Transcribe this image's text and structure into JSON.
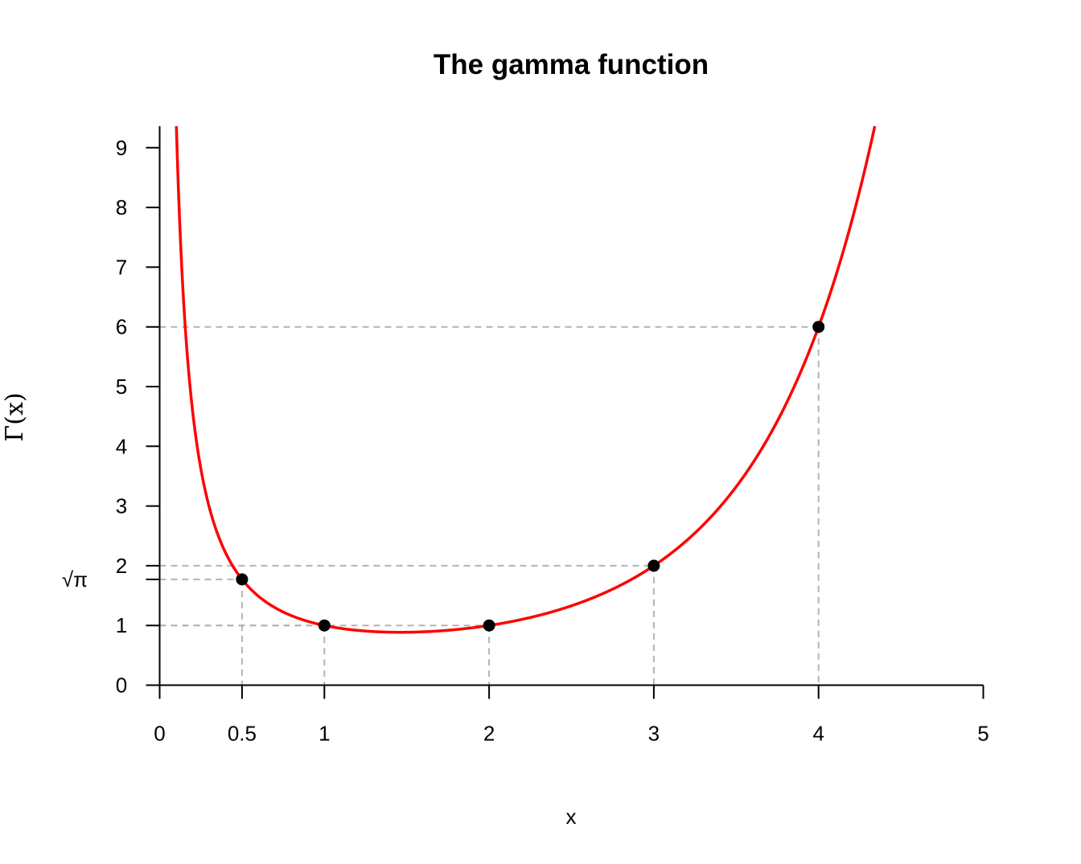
{
  "chart_data": {
    "type": "line",
    "title": "The gamma function",
    "xlabel": "x",
    "ylabel": "Γ(x)",
    "xlim": [
      0,
      5
    ],
    "ylim": [
      0,
      9.4
    ],
    "x_ticks": [
      {
        "value": 0,
        "label": "0"
      },
      {
        "value": 0.5,
        "label": "0.5"
      },
      {
        "value": 1,
        "label": "1"
      },
      {
        "value": 2,
        "label": "2"
      },
      {
        "value": 3,
        "label": "3"
      },
      {
        "value": 4,
        "label": "4"
      },
      {
        "value": 5,
        "label": "5"
      }
    ],
    "y_ticks": [
      {
        "value": 0,
        "label": "0"
      },
      {
        "value": 1,
        "label": "1"
      },
      {
        "value": 1.772,
        "label": "√π"
      },
      {
        "value": 2,
        "label": "2"
      },
      {
        "value": 3,
        "label": "3"
      },
      {
        "value": 4,
        "label": "4"
      },
      {
        "value": 5,
        "label": "5"
      },
      {
        "value": 6,
        "label": "6"
      },
      {
        "value": 7,
        "label": "7"
      },
      {
        "value": 8,
        "label": "8"
      },
      {
        "value": 9,
        "label": "9"
      }
    ],
    "curve": {
      "function": "gamma",
      "color": "#ff0000",
      "x_range": [
        0.05,
        5
      ]
    },
    "points": [
      {
        "x": 0.5,
        "y": 1.772
      },
      {
        "x": 1,
        "y": 1
      },
      {
        "x": 2,
        "y": 1
      },
      {
        "x": 3,
        "y": 2
      },
      {
        "x": 4,
        "y": 6
      }
    ],
    "guide_lines": "dashed",
    "guide_color": "#b3b3b3",
    "point_color": "#000000",
    "grid": false,
    "legend": "none"
  }
}
